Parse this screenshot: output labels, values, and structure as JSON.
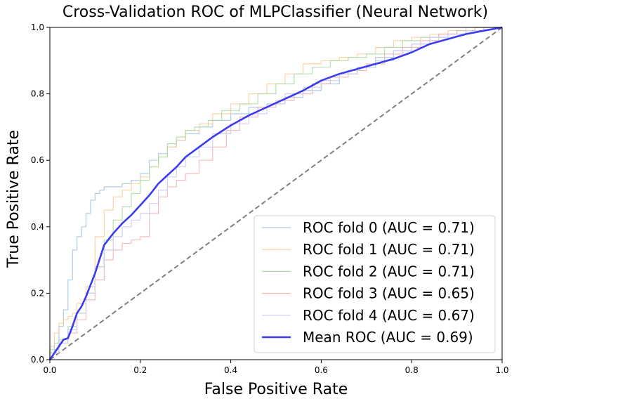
{
  "chart_data": {
    "type": "line",
    "title": "Cross-Validation ROC of MLPClassifier (Neural Network)",
    "xlabel": "False Positive Rate",
    "ylabel": "True Positive Rate",
    "xlim": [
      0.0,
      1.0
    ],
    "ylim": [
      0.0,
      1.0
    ],
    "xticks": [
      "0.0",
      "0.2",
      "0.4",
      "0.6",
      "0.8",
      "1.0"
    ],
    "yticks": [
      "0.0",
      "0.2",
      "0.4",
      "0.6",
      "0.8",
      "1.0"
    ],
    "grid": false,
    "legend_position": "lower-right",
    "chance_line": {
      "x": [
        0,
        1
      ],
      "y": [
        0,
        1
      ],
      "color": "#808080",
      "style": "dashed"
    },
    "series": [
      {
        "name": "ROC fold 0 (AUC = 0.71)",
        "color": "#a9c8e6",
        "step": true,
        "x": [
          0,
          0.01,
          0.02,
          0.03,
          0.04,
          0.05,
          0.06,
          0.07,
          0.08,
          0.09,
          0.1,
          0.11,
          0.12,
          0.14,
          0.16,
          0.18,
          0.2,
          0.22,
          0.24,
          0.26,
          0.28,
          0.3,
          0.33,
          0.36,
          0.4,
          0.44,
          0.48,
          0.52,
          0.56,
          0.6,
          0.64,
          0.68,
          0.72,
          0.76,
          0.8,
          0.84,
          0.88,
          0.92,
          0.96,
          1.0
        ],
        "y": [
          0,
          0.02,
          0.05,
          0.1,
          0.15,
          0.24,
          0.33,
          0.37,
          0.4,
          0.44,
          0.48,
          0.5,
          0.51,
          0.52,
          0.52,
          0.53,
          0.54,
          0.56,
          0.6,
          0.62,
          0.64,
          0.66,
          0.68,
          0.7,
          0.72,
          0.74,
          0.76,
          0.77,
          0.79,
          0.81,
          0.83,
          0.86,
          0.88,
          0.91,
          0.93,
          0.95,
          0.97,
          0.98,
          0.99,
          1.0
        ]
      },
      {
        "name": "ROC fold 1 (AUC = 0.71)",
        "color": "#f9cf9b",
        "step": true,
        "x": [
          0,
          0.01,
          0.02,
          0.03,
          0.04,
          0.05,
          0.06,
          0.08,
          0.1,
          0.12,
          0.14,
          0.16,
          0.18,
          0.2,
          0.22,
          0.24,
          0.26,
          0.28,
          0.3,
          0.33,
          0.36,
          0.4,
          0.44,
          0.48,
          0.52,
          0.56,
          0.6,
          0.64,
          0.68,
          0.72,
          0.76,
          0.8,
          0.84,
          0.88,
          0.92,
          0.96,
          1.0
        ],
        "y": [
          0,
          0.04,
          0.08,
          0.11,
          0.12,
          0.13,
          0.14,
          0.17,
          0.22,
          0.37,
          0.45,
          0.49,
          0.51,
          0.53,
          0.55,
          0.58,
          0.61,
          0.64,
          0.66,
          0.69,
          0.71,
          0.74,
          0.77,
          0.8,
          0.83,
          0.86,
          0.89,
          0.9,
          0.91,
          0.92,
          0.94,
          0.96,
          0.97,
          0.98,
          0.99,
          1.0,
          1.0
        ]
      },
      {
        "name": "ROC fold 2 (AUC = 0.71)",
        "color": "#aedca8",
        "step": true,
        "x": [
          0,
          0.02,
          0.04,
          0.06,
          0.08,
          0.1,
          0.12,
          0.14,
          0.16,
          0.18,
          0.2,
          0.22,
          0.24,
          0.26,
          0.28,
          0.3,
          0.32,
          0.35,
          0.38,
          0.42,
          0.46,
          0.5,
          0.54,
          0.58,
          0.62,
          0.66,
          0.7,
          0.74,
          0.78,
          0.82,
          0.86,
          0.9,
          0.94,
          0.98,
          1.0
        ],
        "y": [
          0,
          0.03,
          0.06,
          0.1,
          0.14,
          0.2,
          0.28,
          0.36,
          0.42,
          0.46,
          0.5,
          0.54,
          0.58,
          0.61,
          0.65,
          0.67,
          0.69,
          0.7,
          0.72,
          0.75,
          0.77,
          0.8,
          0.83,
          0.86,
          0.88,
          0.9,
          0.91,
          0.92,
          0.94,
          0.96,
          0.97,
          0.98,
          0.99,
          1.0,
          1.0
        ]
      },
      {
        "name": "ROC fold 3 (AUC = 0.65)",
        "color": "#f3b6b6",
        "step": true,
        "x": [
          0,
          0.02,
          0.04,
          0.06,
          0.08,
          0.1,
          0.12,
          0.14,
          0.16,
          0.18,
          0.2,
          0.22,
          0.24,
          0.26,
          0.28,
          0.3,
          0.33,
          0.36,
          0.39,
          0.42,
          0.46,
          0.5,
          0.54,
          0.58,
          0.62,
          0.66,
          0.7,
          0.74,
          0.78,
          0.82,
          0.86,
          0.9,
          0.94,
          0.98,
          1.0
        ],
        "y": [
          0,
          0.02,
          0.05,
          0.08,
          0.12,
          0.18,
          0.24,
          0.3,
          0.33,
          0.35,
          0.36,
          0.37,
          0.44,
          0.49,
          0.52,
          0.54,
          0.56,
          0.6,
          0.64,
          0.69,
          0.73,
          0.76,
          0.78,
          0.8,
          0.83,
          0.85,
          0.87,
          0.89,
          0.92,
          0.94,
          0.96,
          0.98,
          0.99,
          1.0,
          1.0
        ]
      },
      {
        "name": "ROC fold 4 (AUC = 0.67)",
        "color": "#ccccf2",
        "step": true,
        "x": [
          0,
          0.02,
          0.04,
          0.06,
          0.08,
          0.1,
          0.12,
          0.14,
          0.16,
          0.18,
          0.2,
          0.22,
          0.24,
          0.26,
          0.28,
          0.3,
          0.33,
          0.36,
          0.4,
          0.44,
          0.48,
          0.52,
          0.56,
          0.6,
          0.64,
          0.68,
          0.72,
          0.76,
          0.8,
          0.84,
          0.88,
          0.92,
          0.96,
          1.0
        ],
        "y": [
          0,
          0.02,
          0.05,
          0.09,
          0.14,
          0.2,
          0.28,
          0.33,
          0.37,
          0.4,
          0.42,
          0.44,
          0.47,
          0.51,
          0.55,
          0.58,
          0.61,
          0.64,
          0.68,
          0.71,
          0.74,
          0.77,
          0.8,
          0.82,
          0.84,
          0.86,
          0.88,
          0.9,
          0.93,
          0.95,
          0.97,
          0.98,
          0.99,
          1.0
        ]
      },
      {
        "name": "Mean ROC (AUC = 0.69)",
        "color": "#3b3bef",
        "step": false,
        "x": [
          0,
          0.02,
          0.03,
          0.04,
          0.05,
          0.06,
          0.07,
          0.08,
          0.1,
          0.12,
          0.14,
          0.16,
          0.18,
          0.2,
          0.22,
          0.24,
          0.26,
          0.28,
          0.3,
          0.33,
          0.36,
          0.4,
          0.44,
          0.48,
          0.52,
          0.56,
          0.6,
          0.64,
          0.68,
          0.72,
          0.76,
          0.8,
          0.84,
          0.88,
          0.92,
          0.96,
          1.0
        ],
        "y": [
          0,
          0.04,
          0.06,
          0.065,
          0.1,
          0.14,
          0.16,
          0.19,
          0.26,
          0.345,
          0.38,
          0.41,
          0.435,
          0.465,
          0.495,
          0.53,
          0.555,
          0.58,
          0.61,
          0.64,
          0.67,
          0.705,
          0.735,
          0.76,
          0.785,
          0.81,
          0.84,
          0.86,
          0.875,
          0.89,
          0.905,
          0.925,
          0.95,
          0.965,
          0.98,
          0.99,
          1.0
        ]
      }
    ]
  }
}
